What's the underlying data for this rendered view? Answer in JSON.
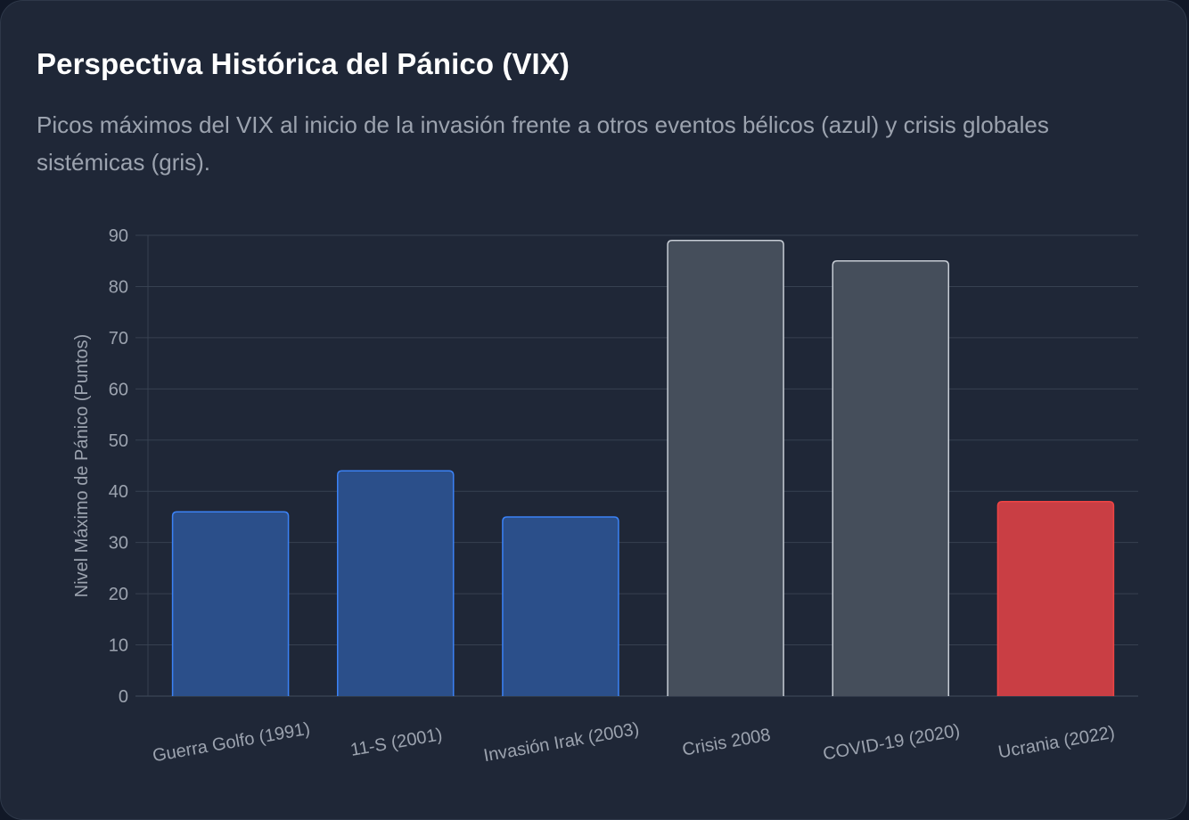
{
  "card": {
    "title": "Perspectiva Histórica del Pánico (VIX)",
    "subtitle": "Picos máximos del VIX al inicio de la invasión frente a otros eventos bélicos (azul) y crisis globales sistémicas (gris)."
  },
  "colors": {
    "background": "#1f2737",
    "grid": "#374151",
    "blue_fill": "#2b4f8a",
    "blue_border": "#3b82f6",
    "gray_fill": "#454e5b",
    "gray_border": "#c6ccd4",
    "red_fill": "#c93e44",
    "red_border": "#ef4444"
  },
  "chart_data": {
    "type": "bar",
    "categories": [
      "Guerra Golfo (1991)",
      "11-S (2001)",
      "Invasión Irak (2003)",
      "Crisis 2008",
      "COVID-19 (2020)",
      "Ucrania (2022)"
    ],
    "values": [
      36,
      44,
      35,
      89,
      85,
      38
    ],
    "groups": [
      "blue",
      "blue",
      "blue",
      "gray",
      "gray",
      "red"
    ],
    "xlabel": "",
    "ylabel": "Nivel Máximo de Pánico (Puntos)",
    "ylim": [
      0,
      90
    ],
    "yticks": [
      0,
      10,
      20,
      30,
      40,
      50,
      60,
      70,
      80,
      90
    ],
    "grid": true,
    "legend": "none"
  }
}
